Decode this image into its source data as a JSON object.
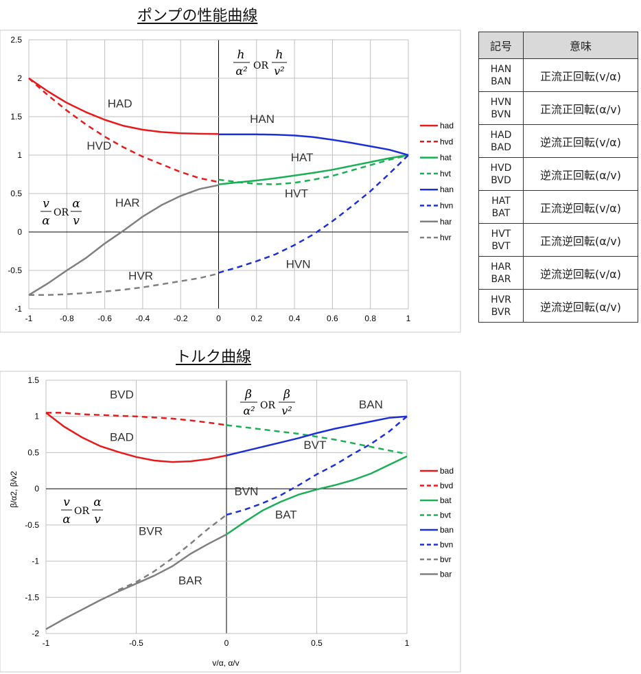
{
  "pump_chart": {
    "title": "ポンプの性能曲線",
    "annotation_right": {
      "num1": "h",
      "den1": "α²",
      "or": "OR",
      "num2": "h",
      "den2": "v²"
    },
    "annotation_left": {
      "num1": "v",
      "den1": "α",
      "or": "OR",
      "num2": "α",
      "den2": "v"
    }
  },
  "torque_chart": {
    "title": "トルク曲線",
    "annotation_right": {
      "num1": "β",
      "den1": "α²",
      "or": "OR",
      "num2": "β",
      "den2": "v²"
    },
    "annotation_left": {
      "num1": "v",
      "den1": "α",
      "or": "OR",
      "num2": "α",
      "den2": "v"
    }
  },
  "table": {
    "headers": [
      "記号",
      "意味"
    ],
    "rows": [
      {
        "code1": "HAN",
        "code2": "BAN",
        "meaning": "正流正回転(v/α)"
      },
      {
        "code1": "HVN",
        "code2": "BVN",
        "meaning": "正流正回転(α/v)"
      },
      {
        "code1": "HAD",
        "code2": "BAD",
        "meaning": "逆流正回転(v/α)"
      },
      {
        "code1": "HVD",
        "code2": "BVD",
        "meaning": "逆流正回転(α/v)"
      },
      {
        "code1": "HAT",
        "code2": "BAT",
        "meaning": "正流逆回転(v/α)"
      },
      {
        "code1": "HVT",
        "code2": "BVT",
        "meaning": "正流逆回転(α/v)"
      },
      {
        "code1": "HAR",
        "code2": "BAR",
        "meaning": "逆流逆回転(v/α)"
      },
      {
        "code1": "HVR",
        "code2": "BVR",
        "meaning": "逆流逆回転(α/v)"
      }
    ]
  },
  "chart_data": [
    {
      "type": "line",
      "title": "ポンプの性能曲線",
      "xlabel": "",
      "ylabel": "",
      "xlim": [
        -1,
        1
      ],
      "ylim": [
        -1,
        2.5
      ],
      "xticks": [
        -1,
        -0.8,
        -0.6,
        -0.4,
        -0.2,
        0,
        0.2,
        0.4,
        0.6,
        0.8,
        1
      ],
      "xtick_labels": [
        "-1",
        "-0.8",
        "-0.6",
        "-0.4",
        "-0.2",
        "0",
        "0.2",
        "0.4",
        "0.6",
        "0.8",
        "1"
      ],
      "yticks": [
        -1,
        -0.5,
        0,
        0.5,
        1,
        1.5,
        2,
        2.5
      ],
      "ytick_labels": [
        "-1",
        "-0.5",
        "0",
        "0.5",
        "1",
        "1.5",
        "2",
        "2.5"
      ],
      "grid": true,
      "legend": "right",
      "series": [
        {
          "name": "had",
          "color": "#e8191a",
          "dash": false,
          "x": [
            -1,
            -0.9,
            -0.8,
            -0.7,
            -0.6,
            -0.5,
            -0.4,
            -0.3,
            -0.2,
            -0.1,
            0
          ],
          "y": [
            2.0,
            1.83,
            1.68,
            1.56,
            1.46,
            1.38,
            1.33,
            1.3,
            1.285,
            1.278,
            1.275
          ]
        },
        {
          "name": "hvd",
          "color": "#e8191a",
          "dash": true,
          "x": [
            -1,
            -0.9,
            -0.8,
            -0.7,
            -0.6,
            -0.5,
            -0.4,
            -0.3,
            -0.2,
            -0.1,
            0
          ],
          "y": [
            2.0,
            1.78,
            1.58,
            1.4,
            1.24,
            1.1,
            0.98,
            0.88,
            0.78,
            0.7,
            0.65
          ]
        },
        {
          "name": "hat",
          "color": "#1aaf54",
          "dash": false,
          "x": [
            0,
            0.1,
            0.2,
            0.3,
            0.4,
            0.5,
            0.6,
            0.7,
            0.8,
            0.9,
            1
          ],
          "y": [
            0.62,
            0.645,
            0.67,
            0.7,
            0.735,
            0.77,
            0.81,
            0.86,
            0.91,
            0.96,
            1.0
          ]
        },
        {
          "name": "hvt",
          "color": "#1aaf54",
          "dash": true,
          "x": [
            0,
            0.1,
            0.2,
            0.3,
            0.4,
            0.5,
            0.6,
            0.7,
            0.8,
            0.9,
            1
          ],
          "y": [
            0.68,
            0.65,
            0.625,
            0.62,
            0.64,
            0.68,
            0.73,
            0.8,
            0.87,
            0.94,
            1.0
          ]
        },
        {
          "name": "han",
          "color": "#1c2fd6",
          "dash": false,
          "x": [
            0,
            0.1,
            0.2,
            0.3,
            0.4,
            0.5,
            0.6,
            0.7,
            0.8,
            0.9,
            1
          ],
          "y": [
            1.27,
            1.27,
            1.27,
            1.265,
            1.255,
            1.235,
            1.2,
            1.16,
            1.115,
            1.07,
            1.0
          ]
        },
        {
          "name": "hvn",
          "color": "#1c2fd6",
          "dash": true,
          "x": [
            0,
            0.1,
            0.2,
            0.3,
            0.4,
            0.5,
            0.6,
            0.7,
            0.8,
            0.9,
            1
          ],
          "y": [
            -0.53,
            -0.46,
            -0.38,
            -0.29,
            -0.17,
            -0.03,
            0.14,
            0.33,
            0.53,
            0.76,
            1.0
          ]
        },
        {
          "name": "har",
          "color": "#7f7f7f",
          "dash": false,
          "x": [
            -1,
            -0.9,
            -0.8,
            -0.7,
            -0.6,
            -0.5,
            -0.4,
            -0.3,
            -0.2,
            -0.1,
            0
          ],
          "y": [
            -0.82,
            -0.67,
            -0.5,
            -0.34,
            -0.15,
            0.02,
            0.2,
            0.35,
            0.47,
            0.56,
            0.61
          ]
        },
        {
          "name": "hvr",
          "color": "#7f7f7f",
          "dash": true,
          "x": [
            -1,
            -0.9,
            -0.8,
            -0.7,
            -0.6,
            -0.5,
            -0.4,
            -0.3,
            -0.2,
            -0.1,
            0
          ],
          "y": [
            -0.82,
            -0.82,
            -0.81,
            -0.795,
            -0.775,
            -0.75,
            -0.72,
            -0.68,
            -0.64,
            -0.6,
            -0.54
          ]
        }
      ],
      "curve_labels": [
        {
          "text": "HAD",
          "x": -0.52,
          "y": 1.62
        },
        {
          "text": "HVD",
          "x": -0.63,
          "y": 1.07
        },
        {
          "text": "HAR",
          "x": -0.48,
          "y": 0.33
        },
        {
          "text": "HVR",
          "x": -0.41,
          "y": -0.62
        },
        {
          "text": "HAN",
          "x": 0.23,
          "y": 1.42
        },
        {
          "text": "HAT",
          "x": 0.44,
          "y": 0.92
        },
        {
          "text": "HVT",
          "x": 0.41,
          "y": 0.45
        },
        {
          "text": "HVN",
          "x": 0.42,
          "y": -0.47
        }
      ]
    },
    {
      "type": "line",
      "title": "トルク曲線",
      "xlabel": "v/α, α/v",
      "ylabel": "β/α2, β/v2",
      "xlim": [
        -1,
        1
      ],
      "ylim": [
        -2,
        1.5
      ],
      "xticks": [
        -1,
        -0.5,
        0,
        0.5,
        1
      ],
      "xtick_labels": [
        "-1",
        "-0.5",
        "0",
        "0.5",
        "1"
      ],
      "yticks": [
        -2,
        -1.5,
        -1,
        -0.5,
        0,
        0.5,
        1,
        1.5
      ],
      "ytick_labels": [
        "-2",
        "-1.5",
        "-1",
        "-0.5",
        "0",
        "0.5",
        "1",
        "1.5"
      ],
      "grid": true,
      "legend": "right",
      "series": [
        {
          "name": "bad",
          "color": "#e8191a",
          "dash": false,
          "x": [
            -1,
            -0.9,
            -0.8,
            -0.7,
            -0.6,
            -0.5,
            -0.4,
            -0.3,
            -0.2,
            -0.1,
            0
          ],
          "y": [
            1.05,
            0.86,
            0.71,
            0.59,
            0.51,
            0.44,
            0.39,
            0.37,
            0.38,
            0.41,
            0.46
          ]
        },
        {
          "name": "bvd",
          "color": "#e8191a",
          "dash": true,
          "x": [
            -1,
            -0.9,
            -0.8,
            -0.7,
            -0.6,
            -0.5,
            -0.4,
            -0.3,
            -0.2,
            -0.1,
            0
          ],
          "y": [
            1.05,
            1.05,
            1.03,
            1.02,
            1.01,
            1.0,
            0.985,
            0.97,
            0.945,
            0.915,
            0.88
          ]
        },
        {
          "name": "bat",
          "color": "#1aaf54",
          "dash": false,
          "x": [
            0,
            0.1,
            0.2,
            0.3,
            0.4,
            0.5,
            0.6,
            0.7,
            0.8,
            0.9,
            1
          ],
          "y": [
            -0.63,
            -0.46,
            -0.3,
            -0.18,
            -0.08,
            -0.01,
            0.05,
            0.12,
            0.21,
            0.33,
            0.45
          ]
        },
        {
          "name": "bvt",
          "color": "#1aaf54",
          "dash": true,
          "x": [
            0,
            0.1,
            0.2,
            0.3,
            0.4,
            0.5,
            0.6,
            0.7,
            0.8,
            0.9,
            1
          ],
          "y": [
            0.88,
            0.85,
            0.82,
            0.79,
            0.76,
            0.72,
            0.68,
            0.63,
            0.58,
            0.53,
            0.48
          ]
        },
        {
          "name": "ban",
          "color": "#1c2fd6",
          "dash": false,
          "x": [
            0,
            0.1,
            0.2,
            0.3,
            0.4,
            0.5,
            0.6,
            0.7,
            0.8,
            0.9,
            1
          ],
          "y": [
            0.46,
            0.52,
            0.58,
            0.64,
            0.7,
            0.77,
            0.83,
            0.88,
            0.93,
            0.98,
            1.0
          ]
        },
        {
          "name": "bvn",
          "color": "#1c2fd6",
          "dash": true,
          "x": [
            0,
            0.1,
            0.2,
            0.3,
            0.4,
            0.5,
            0.6,
            0.7,
            0.8,
            0.9,
            1
          ],
          "y": [
            -0.36,
            -0.29,
            -0.2,
            -0.09,
            0.05,
            0.2,
            0.33,
            0.48,
            0.62,
            0.79,
            1.0
          ]
        },
        {
          "name": "bvr",
          "color": "#7f7f7f",
          "dash": true,
          "x": [
            -0.6,
            -0.5,
            -0.4,
            -0.3,
            -0.2,
            -0.1,
            0
          ],
          "y": [
            -1.4,
            -1.29,
            -1.14,
            -0.96,
            -0.76,
            -0.55,
            -0.36
          ]
        },
        {
          "name": "bar",
          "color": "#7f7f7f",
          "dash": false,
          "x": [
            -1,
            -0.9,
            -0.8,
            -0.7,
            -0.6,
            -0.5,
            -0.4,
            -0.3,
            -0.2,
            -0.1,
            0
          ],
          "y": [
            -1.94,
            -1.8,
            -1.67,
            -1.54,
            -1.42,
            -1.31,
            -1.2,
            -1.07,
            -0.9,
            -0.76,
            -0.63
          ]
        }
      ],
      "curve_labels": [
        {
          "text": "BVD",
          "x": -0.58,
          "y": 1.25
        },
        {
          "text": "BAD",
          "x": -0.58,
          "y": 0.66
        },
        {
          "text": "BVR",
          "x": -0.42,
          "y": -0.64
        },
        {
          "text": "BAR",
          "x": -0.2,
          "y": -1.32
        },
        {
          "text": "BAN",
          "x": 0.8,
          "y": 1.11
        },
        {
          "text": "BVT",
          "x": 0.49,
          "y": 0.55
        },
        {
          "text": "BVN",
          "x": 0.11,
          "y": -0.09
        },
        {
          "text": "BAT",
          "x": 0.33,
          "y": -0.41
        }
      ]
    }
  ]
}
